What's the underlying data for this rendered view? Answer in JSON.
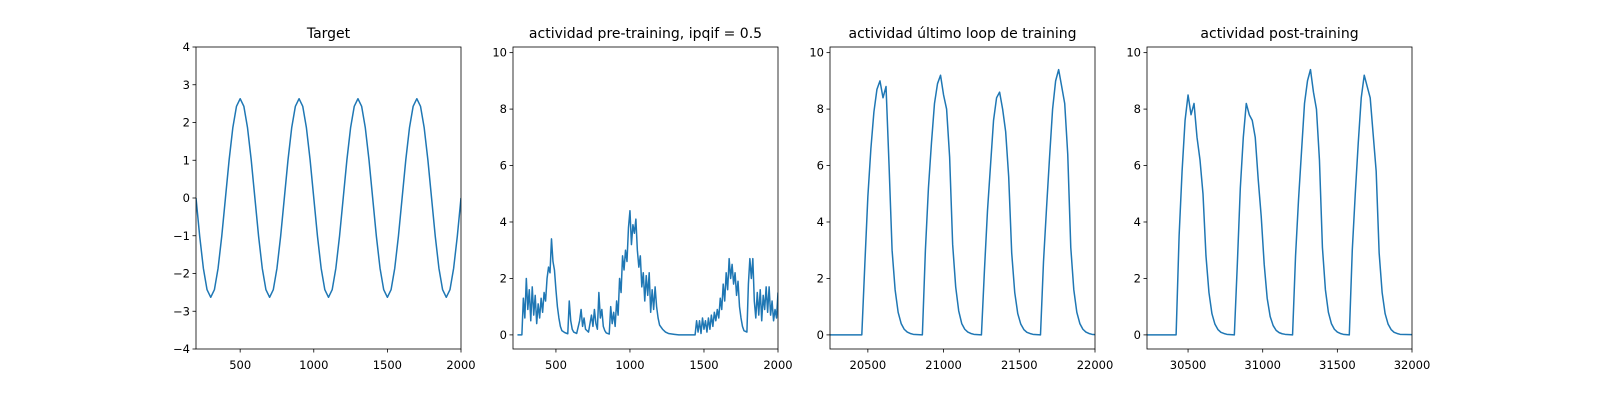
{
  "chart_data": [
    {
      "type": "line",
      "title": "Target",
      "color": "#1f77b4",
      "x": [
        200,
        225,
        250,
        275,
        300,
        325,
        350,
        375,
        400,
        425,
        450,
        475,
        500,
        525,
        550,
        575,
        600,
        625,
        650,
        675,
        700,
        725,
        750,
        775,
        800,
        825,
        850,
        875,
        900,
        925,
        950,
        975,
        1000,
        1025,
        1050,
        1075,
        1100,
        1125,
        1150,
        1175,
        1200,
        1225,
        1250,
        1275,
        1300,
        1325,
        1350,
        1375,
        1400,
        1425,
        1450,
        1475,
        1500,
        1525,
        1550,
        1575,
        1600,
        1625,
        1650,
        1675,
        1700,
        1725,
        1750,
        1775,
        1800,
        1825,
        1850,
        1875,
        1900,
        1925,
        1950,
        1975,
        2000
      ],
      "values": [
        0,
        -1.01,
        -1.86,
        -2.43,
        -2.63,
        -2.43,
        -1.86,
        -1.01,
        0,
        1.01,
        1.86,
        2.43,
        2.63,
        2.43,
        1.86,
        1.01,
        0,
        -1.01,
        -1.86,
        -2.43,
        -2.63,
        -2.43,
        -1.86,
        -1.01,
        0,
        1.01,
        1.86,
        2.43,
        2.63,
        2.43,
        1.86,
        1.01,
        0,
        -1.01,
        -1.86,
        -2.43,
        -2.63,
        -2.43,
        -1.86,
        -1.01,
        0,
        1.01,
        1.86,
        2.43,
        2.63,
        2.43,
        1.86,
        1.01,
        0,
        -1.01,
        -1.86,
        -2.43,
        -2.63,
        -2.43,
        -1.86,
        -1.01,
        0,
        1.01,
        1.86,
        2.43,
        2.63,
        2.43,
        1.86,
        1.01,
        0,
        -1.01,
        -1.86,
        -2.43,
        -2.63,
        -2.43,
        -1.86,
        -1.01,
        0
      ],
      "xlim": [
        200,
        2000
      ],
      "ylim": [
        -4,
        4
      ],
      "xticks": [
        500,
        1000,
        1500,
        2000
      ],
      "yticks": [
        {
          "value": -4,
          "label": "−4"
        },
        {
          "value": -3,
          "label": "−3"
        },
        {
          "value": -2,
          "label": "−2"
        },
        {
          "value": -1,
          "label": "−1"
        },
        0,
        1,
        2,
        3,
        4
      ]
    },
    {
      "type": "line",
      "title": "actividad pre-training, ipqif = 0.5",
      "color": "#1f77b4",
      "x": [
        240,
        260,
        270,
        280,
        290,
        300,
        310,
        320,
        330,
        340,
        350,
        360,
        370,
        380,
        390,
        400,
        410,
        420,
        430,
        440,
        450,
        460,
        470,
        480,
        490,
        500,
        510,
        520,
        530,
        540,
        560,
        580,
        590,
        600,
        610,
        620,
        640,
        660,
        670,
        680,
        690,
        700,
        720,
        740,
        750,
        760,
        770,
        780,
        790,
        800,
        810,
        820,
        830,
        840,
        860,
        870,
        880,
        890,
        900,
        910,
        920,
        930,
        940,
        950,
        960,
        970,
        980,
        990,
        1000,
        1010,
        1020,
        1030,
        1040,
        1050,
        1060,
        1070,
        1080,
        1090,
        1100,
        1110,
        1120,
        1130,
        1140,
        1150,
        1160,
        1170,
        1180,
        1190,
        1200,
        1220,
        1240,
        1260,
        1300,
        1330,
        1440,
        1450,
        1460,
        1470,
        1480,
        1490,
        1500,
        1510,
        1520,
        1530,
        1540,
        1550,
        1560,
        1570,
        1580,
        1590,
        1600,
        1610,
        1620,
        1630,
        1640,
        1650,
        1660,
        1670,
        1680,
        1690,
        1700,
        1710,
        1720,
        1730,
        1740,
        1750,
        1760,
        1770,
        1790,
        1800,
        1810,
        1820,
        1830,
        1840,
        1850,
        1860,
        1870,
        1880,
        1890,
        1900,
        1910,
        1920,
        1930,
        1940,
        1950,
        1960,
        1970,
        1980,
        1990,
        2000
      ],
      "values": [
        0,
        0,
        0,
        1.3,
        0.6,
        2.0,
        0.9,
        1.6,
        0.5,
        1.7,
        0.7,
        1.4,
        0.4,
        1.1,
        0.6,
        1.3,
        0.8,
        1.5,
        1.2,
        2.0,
        2.4,
        2.2,
        3.4,
        2.6,
        2.3,
        1.6,
        1.0,
        0.6,
        0.3,
        0.15,
        0.08,
        0.04,
        1.2,
        0.5,
        0.2,
        0.1,
        0.05,
        0.5,
        0.9,
        0.3,
        0.6,
        0.2,
        0.1,
        0.7,
        0.3,
        0.9,
        0.4,
        0.2,
        1.5,
        0.6,
        0.9,
        0.3,
        0.15,
        0.07,
        0.03,
        1.0,
        0.4,
        0.8,
        0.3,
        1.2,
        0.7,
        2.0,
        1.5,
        2.8,
        2.3,
        3.0,
        2.6,
        3.8,
        4.4,
        3.2,
        3.9,
        3.6,
        4.1,
        3.0,
        2.4,
        2.8,
        1.7,
        2.2,
        1.2,
        2.1,
        1.4,
        2.2,
        0.8,
        1.6,
        0.9,
        1.7,
        1.0,
        0.6,
        0.35,
        0.2,
        0.1,
        0.05,
        0.02,
        0,
        0,
        0.5,
        0.1,
        0.5,
        0.05,
        0.6,
        0.2,
        0.5,
        0.1,
        0.6,
        0.2,
        0.7,
        0.3,
        0.8,
        0.5,
        0.9,
        0.6,
        1.3,
        0.9,
        1.8,
        1.2,
        2.2,
        1.6,
        2.7,
        2.0,
        2.5,
        1.8,
        2.2,
        1.4,
        1.9,
        1.0,
        0.6,
        0.3,
        0.15,
        0.1,
        1.8,
        2.7,
        2.0,
        2.7,
        1.2,
        0.6,
        1.5,
        0.7,
        1.6,
        0.5,
        1.4,
        0.9,
        1.7,
        0.8,
        1.7,
        0.7,
        1.2,
        0.5,
        0.9,
        0.6,
        1.5
      ],
      "xlim": [
        210,
        2000
      ],
      "ylim": [
        -0.5,
        10.2
      ],
      "xticks": [
        500,
        1000,
        1500,
        2000
      ],
      "yticks": [
        0,
        2,
        4,
        6,
        8,
        10
      ]
    },
    {
      "type": "line",
      "title": "actividad último loop de training",
      "color": "#1f77b4",
      "x": [
        20250,
        20460,
        20480,
        20500,
        20520,
        20540,
        20560,
        20580,
        20600,
        20620,
        20640,
        20660,
        20680,
        20700,
        20720,
        20740,
        20760,
        20780,
        20800,
        20860,
        20880,
        20900,
        20920,
        20940,
        20960,
        20980,
        21000,
        21020,
        21040,
        21060,
        21080,
        21100,
        21120,
        21140,
        21160,
        21180,
        21200,
        21250,
        21270,
        21290,
        21310,
        21330,
        21350,
        21370,
        21390,
        21410,
        21430,
        21450,
        21470,
        21490,
        21510,
        21530,
        21550,
        21570,
        21590,
        21640,
        21660,
        21680,
        21700,
        21720,
        21740,
        21760,
        21780,
        21800,
        21820,
        21840,
        21860,
        21880,
        21900,
        21920,
        21940,
        21960,
        21980,
        22000
      ],
      "values": [
        0,
        0,
        2.5,
        4.9,
        6.6,
        7.9,
        8.7,
        9.0,
        8.4,
        8.8,
        6.0,
        3.0,
        1.6,
        0.8,
        0.4,
        0.2,
        0.1,
        0.05,
        0.02,
        0,
        3.0,
        5.2,
        6.8,
        8.2,
        8.9,
        9.2,
        8.5,
        8.0,
        6.3,
        3.2,
        1.7,
        0.85,
        0.4,
        0.2,
        0.1,
        0.05,
        0.02,
        0,
        2.3,
        4.4,
        6.0,
        7.6,
        8.4,
        8.6,
        8.0,
        7.2,
        5.6,
        2.9,
        1.5,
        0.75,
        0.38,
        0.19,
        0.09,
        0.05,
        0.02,
        0,
        2.6,
        4.5,
        6.3,
        8.0,
        9.0,
        9.4,
        8.8,
        8.2,
        6.4,
        3.1,
        1.6,
        0.8,
        0.4,
        0.2,
        0.1,
        0.05,
        0.02,
        0.01
      ],
      "xlim": [
        20250,
        22000
      ],
      "ylim": [
        -0.5,
        10.2
      ],
      "xticks": [
        20500,
        21000,
        21500,
        22000
      ],
      "yticks": [
        0,
        2,
        4,
        6,
        8,
        10
      ]
    },
    {
      "type": "line",
      "title": "actividad post-training",
      "color": "#1f77b4",
      "x": [
        30225,
        30420,
        30440,
        30460,
        30480,
        30500,
        30520,
        30540,
        30560,
        30580,
        30600,
        30620,
        30640,
        30660,
        30680,
        30700,
        30720,
        30740,
        30760,
        30810,
        30830,
        30850,
        30870,
        30890,
        30910,
        30930,
        30950,
        30970,
        30990,
        31010,
        31030,
        31050,
        31070,
        31090,
        31110,
        31130,
        31150,
        31200,
        31220,
        31240,
        31260,
        31280,
        31300,
        31320,
        31340,
        31360,
        31380,
        31400,
        31420,
        31440,
        31460,
        31480,
        31500,
        31520,
        31540,
        31580,
        31600,
        31620,
        31640,
        31660,
        31680,
        31700,
        31720,
        31740,
        31760,
        31780,
        31800,
        31820,
        31840,
        31860,
        31880,
        31900,
        31920,
        32000
      ],
      "values": [
        0,
        0,
        3.5,
        5.8,
        7.6,
        8.5,
        7.8,
        8.2,
        7.0,
        6.2,
        5.0,
        2.8,
        1.5,
        0.75,
        0.38,
        0.19,
        0.09,
        0.05,
        0.02,
        0,
        2.5,
        5.2,
        7.0,
        8.2,
        7.8,
        7.6,
        7.0,
        5.5,
        4.2,
        2.5,
        1.3,
        0.65,
        0.33,
        0.16,
        0.08,
        0.04,
        0.02,
        0,
        2.8,
        4.8,
        6.5,
        8.2,
        9.0,
        9.4,
        8.6,
        8.0,
        6.2,
        3.1,
        1.6,
        0.8,
        0.4,
        0.2,
        0.1,
        0.05,
        0.02,
        0,
        3.0,
        5.0,
        6.8,
        8.4,
        9.2,
        8.8,
        8.4,
        7.1,
        5.8,
        2.9,
        1.5,
        0.75,
        0.38,
        0.19,
        0.09,
        0.05,
        0.02,
        0.01
      ],
      "xlim": [
        30225,
        32000
      ],
      "ylim": [
        -0.5,
        10.2
      ],
      "xticks": [
        30500,
        31000,
        31500,
        32000
      ],
      "yticks": [
        0,
        2,
        4,
        6,
        8,
        10
      ]
    }
  ]
}
